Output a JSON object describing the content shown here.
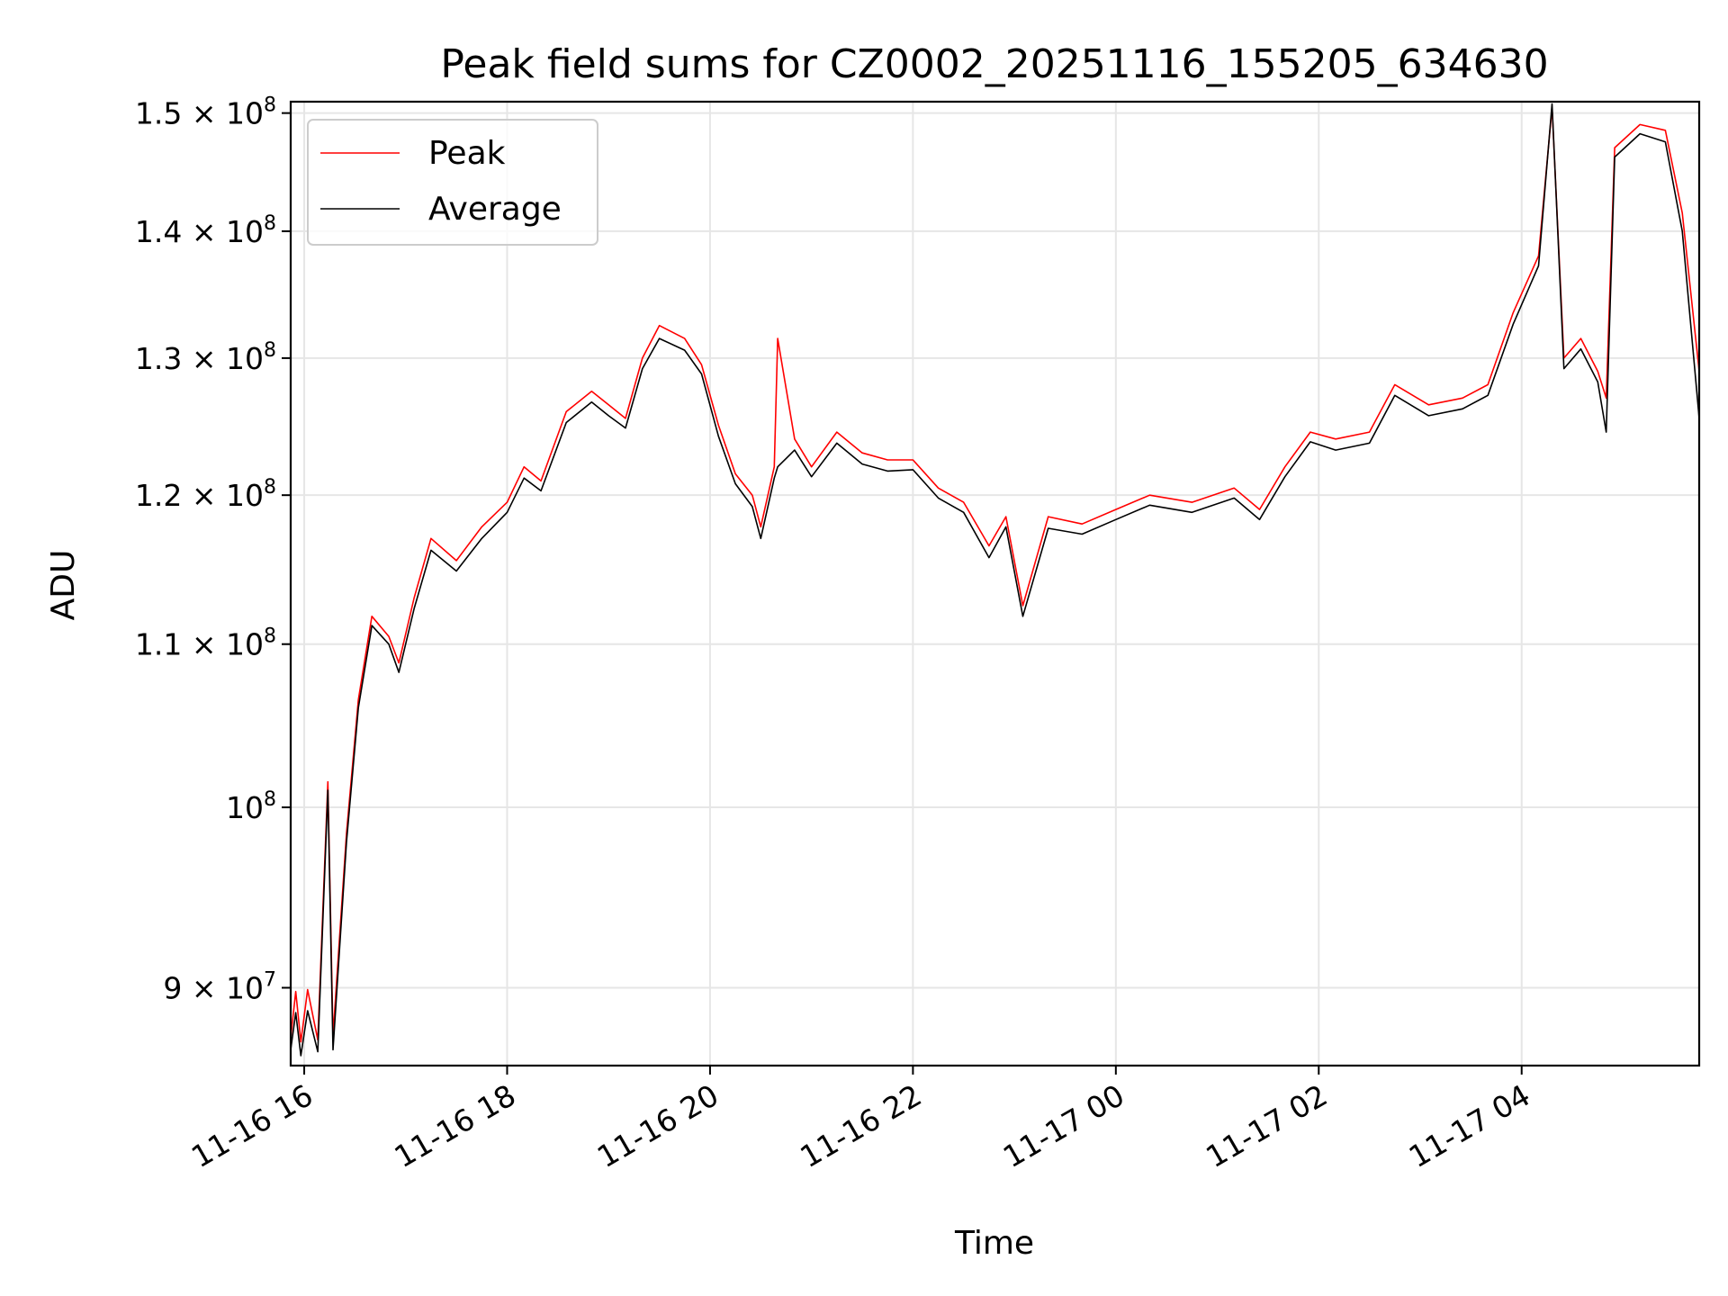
{
  "chart_data": {
    "type": "line",
    "title": "Peak field sums for CZ0002_20251116_155205_634630",
    "xlabel": "Time",
    "ylabel": "ADU",
    "yscale": "log",
    "xlim": [
      "2025-11-16 15:52",
      "2025-11-17 05:45"
    ],
    "ylim": [
      86000000,
      151000000
    ],
    "grid": true,
    "legend": "top-left",
    "x_ticks": [
      {
        "label": "11-16 16",
        "t": "2025-11-16 16:00"
      },
      {
        "label": "11-16 18",
        "t": "2025-11-16 18:00"
      },
      {
        "label": "11-16 20",
        "t": "2025-11-16 20:00"
      },
      {
        "label": "11-16 22",
        "t": "2025-11-16 22:00"
      },
      {
        "label": "11-17 00",
        "t": "2025-11-17 00:00"
      },
      {
        "label": "11-17 02",
        "t": "2025-11-17 02:00"
      },
      {
        "label": "11-17 04",
        "t": "2025-11-17 04:00"
      }
    ],
    "y_ticks": [
      {
        "label": "9 × 10",
        "exp": "7",
        "value": 90000000
      },
      {
        "label": "10",
        "exp": "8",
        "value": 100000000
      },
      {
        "label": "1.1 × 10",
        "exp": "8",
        "value": 110000000
      },
      {
        "label": "1.2 × 10",
        "exp": "8",
        "value": 120000000
      },
      {
        "label": "1.3 × 10",
        "exp": "8",
        "value": 130000000
      },
      {
        "label": "1.4 × 10",
        "exp": "8",
        "value": 140000000
      },
      {
        "label": "1.5 × 10",
        "exp": "8",
        "value": 150000000
      }
    ],
    "series": [
      {
        "name": "Peak",
        "color": "#ff0000",
        "values": [
          [
            "2025-11-16 15:52",
            87400000
          ],
          [
            "2025-11-16 15:55",
            89800000
          ],
          [
            "2025-11-16 15:58",
            87200000
          ],
          [
            "2025-11-16 16:02",
            89900000
          ],
          [
            "2025-11-16 16:08",
            87300000
          ],
          [
            "2025-11-16 16:14",
            101500000
          ],
          [
            "2025-11-16 16:17",
            87500000
          ],
          [
            "2025-11-16 16:25",
            98500000
          ],
          [
            "2025-11-16 16:32",
            106500000
          ],
          [
            "2025-11-16 16:40",
            111800000
          ],
          [
            "2025-11-16 16:50",
            110500000
          ],
          [
            "2025-11-16 16:56",
            108800000
          ],
          [
            "2025-11-16 17:05",
            113000000
          ],
          [
            "2025-11-16 17:15",
            117000000
          ],
          [
            "2025-11-16 17:30",
            115500000
          ],
          [
            "2025-11-16 17:45",
            117800000
          ],
          [
            "2025-11-16 18:00",
            119500000
          ],
          [
            "2025-11-16 18:10",
            122000000
          ],
          [
            "2025-11-16 18:20",
            121000000
          ],
          [
            "2025-11-16 18:35",
            126000000
          ],
          [
            "2025-11-16 18:50",
            127500000
          ],
          [
            "2025-11-16 19:00",
            126500000
          ],
          [
            "2025-11-16 19:10",
            125500000
          ],
          [
            "2025-11-16 19:20",
            130000000
          ],
          [
            "2025-11-16 19:30",
            132500000
          ],
          [
            "2025-11-16 19:45",
            131500000
          ],
          [
            "2025-11-16 19:55",
            129500000
          ],
          [
            "2025-11-16 20:05",
            125000000
          ],
          [
            "2025-11-16 20:15",
            121500000
          ],
          [
            "2025-11-16 20:25",
            120000000
          ],
          [
            "2025-11-16 20:30",
            117800000
          ],
          [
            "2025-11-16 20:38",
            122000000
          ],
          [
            "2025-11-16 20:40",
            131500000
          ],
          [
            "2025-11-16 20:50",
            124000000
          ],
          [
            "2025-11-16 21:00",
            122000000
          ],
          [
            "2025-11-16 21:15",
            124500000
          ],
          [
            "2025-11-16 21:30",
            123000000
          ],
          [
            "2025-11-16 21:45",
            122500000
          ],
          [
            "2025-11-16 22:00",
            122500000
          ],
          [
            "2025-11-16 22:15",
            120500000
          ],
          [
            "2025-11-16 22:30",
            119500000
          ],
          [
            "2025-11-16 22:45",
            116500000
          ],
          [
            "2025-11-16 22:55",
            118500000
          ],
          [
            "2025-11-16 23:05",
            112500000
          ],
          [
            "2025-11-16 23:20",
            118500000
          ],
          [
            "2025-11-16 23:40",
            118000000
          ],
          [
            "2025-11-17 00:00",
            119000000
          ],
          [
            "2025-11-17 00:20",
            120000000
          ],
          [
            "2025-11-17 00:45",
            119500000
          ],
          [
            "2025-11-17 01:10",
            120500000
          ],
          [
            "2025-11-17 01:25",
            119000000
          ],
          [
            "2025-11-17 01:40",
            122000000
          ],
          [
            "2025-11-17 01:55",
            124500000
          ],
          [
            "2025-11-17 02:10",
            124000000
          ],
          [
            "2025-11-17 02:30",
            124500000
          ],
          [
            "2025-11-17 02:45",
            128000000
          ],
          [
            "2025-11-17 03:05",
            126500000
          ],
          [
            "2025-11-17 03:25",
            127000000
          ],
          [
            "2025-11-17 03:40",
            128000000
          ],
          [
            "2025-11-17 03:55",
            133500000
          ],
          [
            "2025-11-17 04:10",
            138000000
          ],
          [
            "2025-11-17 04:18",
            150500000
          ],
          [
            "2025-11-17 04:25",
            130000000
          ],
          [
            "2025-11-17 04:35",
            131500000
          ],
          [
            "2025-11-17 04:45",
            129000000
          ],
          [
            "2025-11-17 04:50",
            127000000
          ],
          [
            "2025-11-17 04:55",
            147000000
          ],
          [
            "2025-11-17 05:10",
            149000000
          ],
          [
            "2025-11-17 05:25",
            148500000
          ],
          [
            "2025-11-17 05:35",
            141500000
          ],
          [
            "2025-11-17 05:45",
            129000000
          ]
        ]
      },
      {
        "name": "Average",
        "color": "#000000",
        "values": [
          [
            "2025-11-16 15:52",
            86800000
          ],
          [
            "2025-11-16 15:55",
            88700000
          ],
          [
            "2025-11-16 15:58",
            86500000
          ],
          [
            "2025-11-16 16:02",
            88800000
          ],
          [
            "2025-11-16 16:08",
            86700000
          ],
          [
            "2025-11-16 16:14",
            101000000
          ],
          [
            "2025-11-16 16:17",
            86800000
          ],
          [
            "2025-11-16 16:25",
            98000000
          ],
          [
            "2025-11-16 16:32",
            106000000
          ],
          [
            "2025-11-16 16:40",
            111200000
          ],
          [
            "2025-11-16 16:50",
            110000000
          ],
          [
            "2025-11-16 16:56",
            108200000
          ],
          [
            "2025-11-16 17:05",
            112300000
          ],
          [
            "2025-11-16 17:15",
            116200000
          ],
          [
            "2025-11-16 17:30",
            114800000
          ],
          [
            "2025-11-16 17:45",
            117000000
          ],
          [
            "2025-11-16 18:00",
            118800000
          ],
          [
            "2025-11-16 18:10",
            121200000
          ],
          [
            "2025-11-16 18:20",
            120300000
          ],
          [
            "2025-11-16 18:35",
            125200000
          ],
          [
            "2025-11-16 18:50",
            126700000
          ],
          [
            "2025-11-16 19:00",
            125700000
          ],
          [
            "2025-11-16 19:10",
            124800000
          ],
          [
            "2025-11-16 19:20",
            129200000
          ],
          [
            "2025-11-16 19:30",
            131500000
          ],
          [
            "2025-11-16 19:45",
            130600000
          ],
          [
            "2025-11-16 19:55",
            128800000
          ],
          [
            "2025-11-16 20:05",
            124200000
          ],
          [
            "2025-11-16 20:15",
            120800000
          ],
          [
            "2025-11-16 20:25",
            119200000
          ],
          [
            "2025-11-16 20:30",
            117000000
          ],
          [
            "2025-11-16 20:38",
            121200000
          ],
          [
            "2025-11-16 20:40",
            122000000
          ],
          [
            "2025-11-16 20:50",
            123200000
          ],
          [
            "2025-11-16 21:00",
            121300000
          ],
          [
            "2025-11-16 21:15",
            123700000
          ],
          [
            "2025-11-16 21:30",
            122200000
          ],
          [
            "2025-11-16 21:45",
            121700000
          ],
          [
            "2025-11-16 22:00",
            121800000
          ],
          [
            "2025-11-16 22:15",
            119800000
          ],
          [
            "2025-11-16 22:30",
            118800000
          ],
          [
            "2025-11-16 22:45",
            115700000
          ],
          [
            "2025-11-16 22:55",
            117800000
          ],
          [
            "2025-11-16 23:05",
            111800000
          ],
          [
            "2025-11-16 23:20",
            117700000
          ],
          [
            "2025-11-16 23:40",
            117300000
          ],
          [
            "2025-11-17 00:00",
            118300000
          ],
          [
            "2025-11-17 00:20",
            119300000
          ],
          [
            "2025-11-17 00:45",
            118800000
          ],
          [
            "2025-11-17 01:10",
            119800000
          ],
          [
            "2025-11-17 01:25",
            118300000
          ],
          [
            "2025-11-17 01:40",
            121300000
          ],
          [
            "2025-11-17 01:55",
            123800000
          ],
          [
            "2025-11-17 02:10",
            123200000
          ],
          [
            "2025-11-17 02:30",
            123700000
          ],
          [
            "2025-11-17 02:45",
            127200000
          ],
          [
            "2025-11-17 03:05",
            125700000
          ],
          [
            "2025-11-17 03:25",
            126200000
          ],
          [
            "2025-11-17 03:40",
            127200000
          ],
          [
            "2025-11-17 03:55",
            132600000
          ],
          [
            "2025-11-17 04:10",
            137200000
          ],
          [
            "2025-11-17 04:18",
            150800000
          ],
          [
            "2025-11-17 04:25",
            129200000
          ],
          [
            "2025-11-17 04:35",
            130700000
          ],
          [
            "2025-11-17 04:45",
            128200000
          ],
          [
            "2025-11-17 04:50",
            124500000
          ],
          [
            "2025-11-17 04:55",
            146200000
          ],
          [
            "2025-11-17 05:10",
            148200000
          ],
          [
            "2025-11-17 05:25",
            147500000
          ],
          [
            "2025-11-17 05:35",
            140000000
          ],
          [
            "2025-11-17 05:45",
            125500000
          ]
        ]
      }
    ]
  }
}
